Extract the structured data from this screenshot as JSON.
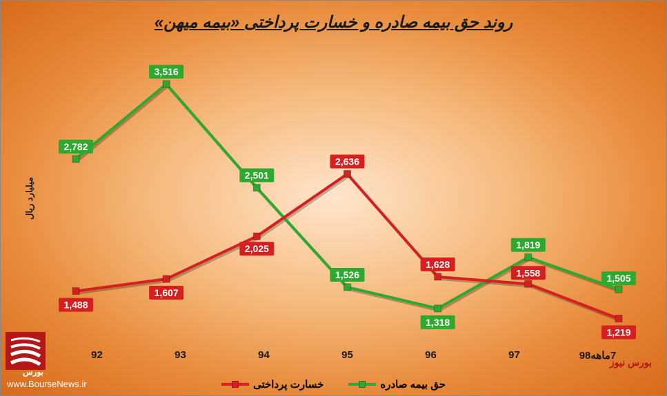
{
  "chart": {
    "title": "روند حق بیمه صادره و خسارت پرداختی «بیمه میهن»",
    "type": "line",
    "yaxis_label": "میلیارد ریال",
    "categories": [
      "92",
      "93",
      "94",
      "95",
      "96",
      "97",
      "7ماهه98"
    ],
    "series": [
      {
        "name": "حق بیمه صادره",
        "color": "#2fa82f",
        "values": [
          2782,
          3516,
          2501,
          1526,
          1318,
          1819,
          1505
        ]
      },
      {
        "name": "خسارت پرداختی",
        "color": "#d62020",
        "values": [
          1488,
          1607,
          2025,
          2636,
          1628,
          1558,
          1219
        ]
      }
    ],
    "ylim": [
      1000,
      3800
    ],
    "line_width": 4,
    "marker_size": 10,
    "label_fontsize": 14,
    "label_bg_padding": 4,
    "background": {
      "gradient_inner": "#ffe5cc",
      "gradient_mid": "#f5b87a",
      "gradient_outer": "#d66a1a"
    },
    "title_fontsize": 24,
    "xaxis_fontsize": 15
  },
  "watermark": {
    "source": "بورس نیوز",
    "url": "www.BourseNews.ir",
    "logo_color": "#b31717"
  }
}
